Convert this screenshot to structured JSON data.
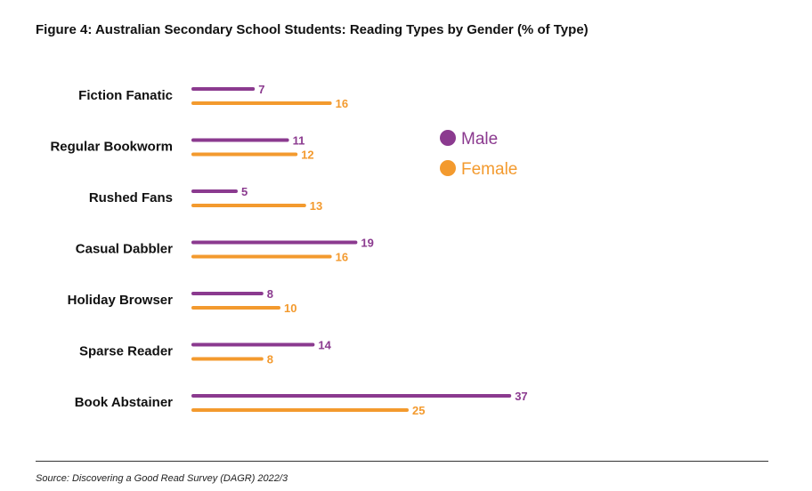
{
  "chart_data": {
    "type": "bar",
    "orientation": "horizontal",
    "title": "Figure 4: Australian Secondary School Students: Reading Types by Gender (% of Type)",
    "categories": [
      "Fiction Fanatic",
      "Regular Bookworm",
      "Rushed Fans",
      "Casual Dabbler",
      "Holiday Browser",
      "Sparse Reader",
      "Book Abstainer"
    ],
    "series": [
      {
        "name": "Male",
        "color": "#8B3A8F",
        "values": [
          7,
          11,
          5,
          19,
          8,
          14,
          37
        ]
      },
      {
        "name": "Female",
        "color": "#F39A2E",
        "values": [
          16,
          12,
          13,
          16,
          10,
          8,
          25
        ]
      }
    ],
    "legend_position": "right",
    "grid": false,
    "xlim": [
      0,
      40
    ]
  },
  "source": "Source: Discovering a Good Read Survey (DAGR) 2022/3"
}
